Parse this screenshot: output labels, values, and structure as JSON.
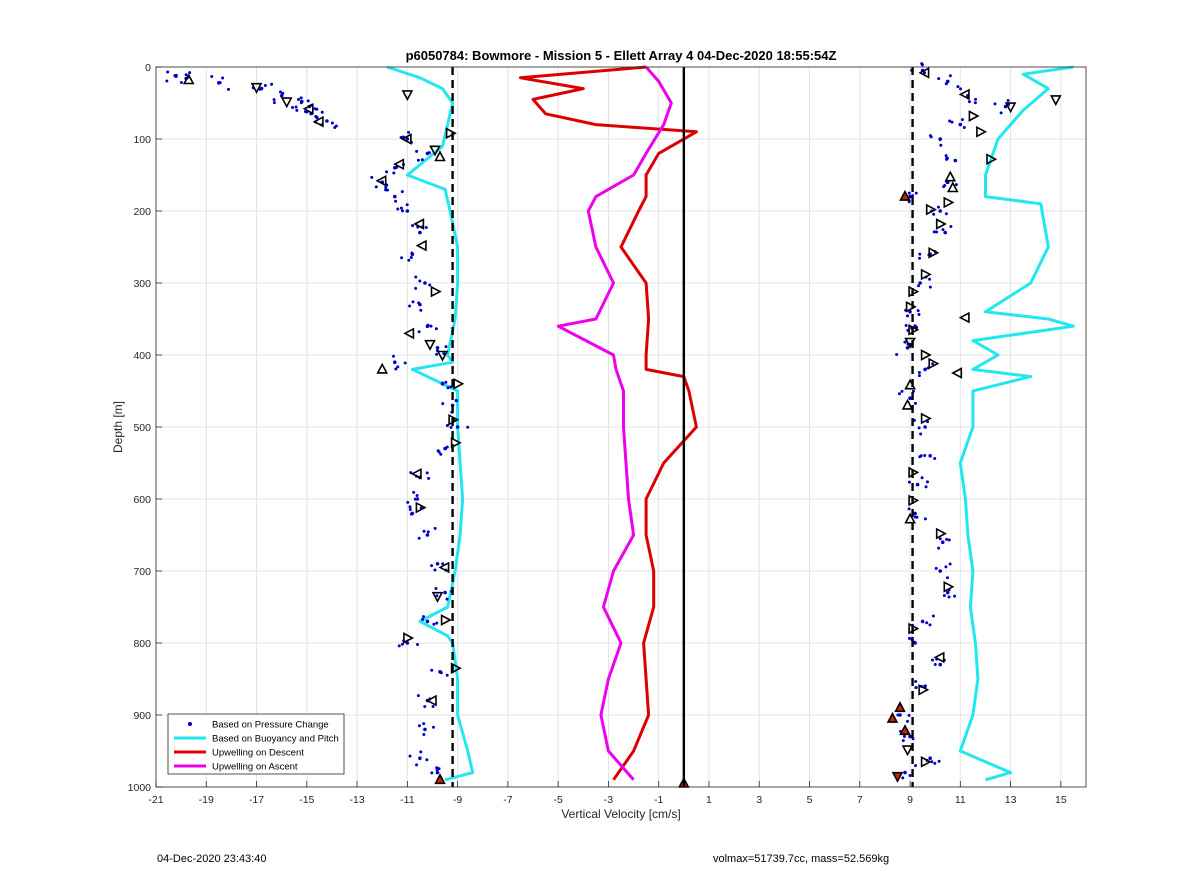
{
  "footer": {
    "timestamp": "04-Dec-2020 23:43:40",
    "vol_mass": "volmax=51739.7cc, mass=52.569kg"
  },
  "chart_data": {
    "type": "line",
    "title": "p6050784: Bowmore - Mission 5 - Ellett Array 4 04-Dec-2020 18:55:54Z",
    "xlabel": "Vertical Velocity [cm/s]",
    "ylabel": "Depth [m]",
    "xlim": [
      -21,
      16
    ],
    "ylim": [
      0,
      1000
    ],
    "y_reversed": true,
    "xticks": [
      -21,
      -19,
      -17,
      -15,
      -13,
      -11,
      -9,
      -7,
      -5,
      -3,
      -1,
      1,
      3,
      5,
      7,
      9,
      11,
      13,
      15
    ],
    "yticks": [
      0,
      100,
      200,
      300,
      400,
      500,
      600,
      700,
      800,
      900,
      1000
    ],
    "grid": true,
    "legend_position": "bottom-left",
    "colors": {
      "pressure": "#0000cc",
      "buoyancy": "#22e8ee",
      "descent": "#dd0000",
      "ascent": "#ee00ee",
      "reference": "#000000"
    },
    "legend": [
      {
        "label": "Based on Pressure Change",
        "style": "dot",
        "color": "#0000cc"
      },
      {
        "label": "Based on Buoyancy and Pitch",
        "style": "line",
        "color": "#22e8ee"
      },
      {
        "label": "Upwelling on Descent",
        "style": "line",
        "color": "#dd0000"
      },
      {
        "label": "Upwelling on Ascent",
        "style": "line",
        "color": "#ee00ee"
      }
    ],
    "reference_lines": [
      {
        "x": -9.2,
        "style": "dashed"
      },
      {
        "x": 9.1,
        "style": "dashed"
      },
      {
        "x": 0,
        "style": "solid"
      }
    ],
    "series": [
      {
        "name": "Based on Buoyancy and Pitch",
        "style": "line",
        "color": "#22e8ee",
        "depth": [
          0,
          15,
          30,
          50,
          80,
          110,
          150,
          170,
          200,
          250,
          300,
          350,
          400,
          410,
          420,
          450,
          500,
          550,
          600,
          650,
          700,
          750,
          770,
          790,
          800,
          850,
          900,
          950,
          980,
          990
        ],
        "values": [
          -11.8,
          -10.5,
          -9.6,
          -9.2,
          -9.4,
          -9.6,
          -11.0,
          -9.5,
          -9.3,
          -9.0,
          -9.0,
          -9.1,
          -9.4,
          -9.2,
          -10.8,
          -9.0,
          -9.0,
          -8.9,
          -8.8,
          -8.9,
          -9.1,
          -9.4,
          -10.5,
          -9.4,
          -9.2,
          -9.0,
          -9.0,
          -8.6,
          -8.4,
          -9.5
        ]
      },
      {
        "name": "Based on Buoyancy and Pitch",
        "style": "line",
        "color": "#22e8ee",
        "depth": [
          0,
          10,
          30,
          60,
          100,
          150,
          180,
          190,
          250,
          300,
          340,
          350,
          360,
          380,
          400,
          420,
          430,
          450,
          500,
          550,
          600,
          650,
          700,
          750,
          800,
          850,
          900,
          950,
          980,
          990
        ],
        "values": [
          15.5,
          13.5,
          14.5,
          13.5,
          12.5,
          12.0,
          12.0,
          14.2,
          14.5,
          13.8,
          12.0,
          14.5,
          15.5,
          11.5,
          12.5,
          11.5,
          13.8,
          11.5,
          11.5,
          11.0,
          11.2,
          11.3,
          11.5,
          11.4,
          11.6,
          11.7,
          11.5,
          11.0,
          13.0,
          12.0
        ]
      },
      {
        "name": "Upwelling on Descent",
        "style": "line",
        "color": "#dd0000",
        "depth": [
          0,
          15,
          30,
          45,
          65,
          80,
          90,
          120,
          150,
          180,
          200,
          250,
          300,
          350,
          400,
          420,
          430,
          450,
          500,
          550,
          600,
          650,
          700,
          750,
          800,
          850,
          900,
          950,
          990
        ],
        "values": [
          -1.5,
          -6.5,
          -4.0,
          -6.0,
          -5.5,
          -3.5,
          0.5,
          -1.0,
          -1.5,
          -1.5,
          -1.8,
          -2.5,
          -1.5,
          -1.4,
          -1.5,
          -1.5,
          0.0,
          0.2,
          0.5,
          -0.8,
          -1.5,
          -1.5,
          -1.2,
          -1.2,
          -1.6,
          -1.5,
          -1.4,
          -2.0,
          -2.8
        ]
      },
      {
        "name": "Upwelling on Ascent",
        "style": "line",
        "color": "#ee00ee",
        "depth": [
          0,
          20,
          50,
          80,
          120,
          150,
          180,
          200,
          250,
          300,
          350,
          360,
          400,
          420,
          450,
          500,
          550,
          600,
          650,
          700,
          750,
          800,
          850,
          900,
          950,
          990
        ],
        "values": [
          -1.5,
          -1.0,
          -0.5,
          -0.8,
          -1.5,
          -2.0,
          -3.5,
          -3.8,
          -3.5,
          -2.8,
          -3.5,
          -5.0,
          -2.8,
          -2.7,
          -2.4,
          -2.4,
          -2.3,
          -2.2,
          -2.0,
          -2.8,
          -3.2,
          -2.5,
          -3.0,
          -3.3,
          -3.0,
          -2.0
        ]
      },
      {
        "name": "Based on Pressure Change",
        "style": "dots",
        "color": "#0000cc",
        "depth": [
          12,
          16,
          22,
          30,
          40,
          48,
          55,
          62,
          70,
          75,
          100,
          120,
          140,
          160,
          180,
          200,
          230,
          260,
          300,
          330,
          360,
          390,
          410,
          440,
          470,
          500,
          530,
          570,
          600,
          620,
          650,
          690,
          730,
          770,
          800,
          840,
          880,
          920,
          960,
          980
        ],
        "values": [
          -20.2,
          -19.8,
          -18.5,
          -16.8,
          -16.0,
          -15.2,
          -14.9,
          -15.0,
          -14.6,
          -14.2,
          -11.0,
          -10.2,
          -11.5,
          -12.0,
          -11.5,
          -11.0,
          -10.5,
          -10.8,
          -10.3,
          -10.5,
          -10.2,
          -9.8,
          -11.5,
          -9.6,
          -9.2,
          -9.0,
          -9.5,
          -10.5,
          -10.6,
          -10.8,
          -10.2,
          -9.8,
          -9.5,
          -10.2,
          -11.0,
          -9.7,
          -10.2,
          -10.3,
          -10.5,
          -9.8
        ]
      },
      {
        "name": "Based on Pressure Change",
        "style": "dots",
        "color": "#0000cc",
        "depth": [
          5,
          20,
          40,
          55,
          80,
          100,
          130,
          160,
          180,
          200,
          230,
          260,
          300,
          340,
          360,
          390,
          420,
          460,
          500,
          540,
          580,
          620,
          660,
          700,
          730,
          770,
          800,
          830,
          860,
          900,
          930,
          960,
          980
        ],
        "values": [
          9.5,
          10.5,
          11.3,
          12.8,
          11.0,
          10.2,
          10.8,
          10.5,
          9.0,
          10.2,
          10.4,
          9.8,
          9.4,
          9.0,
          9.2,
          8.9,
          9.6,
          9.0,
          9.6,
          9.8,
          9.3,
          9.2,
          10.3,
          10.2,
          10.5,
          9.5,
          9.2,
          10.2,
          9.6,
          8.6,
          9.0,
          9.8,
          8.8
        ]
      }
    ],
    "markers": [
      {
        "x": -19.7,
        "depth": 18,
        "shape": "triangle-up"
      },
      {
        "x": -17.0,
        "depth": 28,
        "shape": "triangle-down"
      },
      {
        "x": -15.8,
        "depth": 48,
        "shape": "triangle-down"
      },
      {
        "x": -14.9,
        "depth": 58,
        "shape": "triangle-left"
      },
      {
        "x": -14.5,
        "depth": 76,
        "shape": "triangle-left"
      },
      {
        "x": -11.0,
        "depth": 38,
        "shape": "triangle-down"
      },
      {
        "x": -11.0,
        "depth": 100,
        "shape": "triangle-left"
      },
      {
        "x": -9.3,
        "depth": 92,
        "shape": "triangle-right"
      },
      {
        "x": -9.9,
        "depth": 115,
        "shape": "triangle-down"
      },
      {
        "x": -9.7,
        "depth": 125,
        "shape": "triangle-up"
      },
      {
        "x": -11.3,
        "depth": 135,
        "shape": "triangle-left"
      },
      {
        "x": -12.0,
        "depth": 158,
        "shape": "triangle-left"
      },
      {
        "x": -10.5,
        "depth": 218,
        "shape": "triangle-left"
      },
      {
        "x": -10.4,
        "depth": 248,
        "shape": "triangle-left"
      },
      {
        "x": -9.9,
        "depth": 312,
        "shape": "triangle-right"
      },
      {
        "x": -10.9,
        "depth": 370,
        "shape": "triangle-left"
      },
      {
        "x": -10.1,
        "depth": 385,
        "shape": "triangle-down"
      },
      {
        "x": -9.6,
        "depth": 400,
        "shape": "triangle-down"
      },
      {
        "x": -12.0,
        "depth": 420,
        "shape": "triangle-up"
      },
      {
        "x": -9.0,
        "depth": 440,
        "shape": "triangle-right"
      },
      {
        "x": -9.2,
        "depth": 490,
        "shape": "triangle-right"
      },
      {
        "x": -9.1,
        "depth": 522,
        "shape": "triangle-right"
      },
      {
        "x": -10.6,
        "depth": 565,
        "shape": "triangle-left"
      },
      {
        "x": -10.5,
        "depth": 612,
        "shape": "triangle-right"
      },
      {
        "x": -9.5,
        "depth": 695,
        "shape": "triangle-left"
      },
      {
        "x": -9.8,
        "depth": 735,
        "shape": "triangle-down"
      },
      {
        "x": -9.5,
        "depth": 768,
        "shape": "triangle-right"
      },
      {
        "x": -11.0,
        "depth": 793,
        "shape": "triangle-right"
      },
      {
        "x": -9.1,
        "depth": 835,
        "shape": "triangle-right"
      },
      {
        "x": -10.0,
        "depth": 880,
        "shape": "triangle-left"
      },
      {
        "x": -9.7,
        "depth": 990,
        "shape": "triangle-up-filled"
      },
      {
        "x": 9.6,
        "depth": 8,
        "shape": "triangle-left"
      },
      {
        "x": 11.2,
        "depth": 38,
        "shape": "triangle-left"
      },
      {
        "x": 13.0,
        "depth": 55,
        "shape": "triangle-down"
      },
      {
        "x": 14.8,
        "depth": 45,
        "shape": "triangle-down"
      },
      {
        "x": 11.5,
        "depth": 68,
        "shape": "triangle-right"
      },
      {
        "x": 12.2,
        "depth": 128,
        "shape": "triangle-right"
      },
      {
        "x": 11.8,
        "depth": 90,
        "shape": "triangle-right"
      },
      {
        "x": 10.6,
        "depth": 153,
        "shape": "triangle-up"
      },
      {
        "x": 10.7,
        "depth": 168,
        "shape": "triangle-up"
      },
      {
        "x": 8.8,
        "depth": 180,
        "shape": "triangle-up-filled"
      },
      {
        "x": 10.5,
        "depth": 188,
        "shape": "triangle-right"
      },
      {
        "x": 9.8,
        "depth": 198,
        "shape": "triangle-right"
      },
      {
        "x": 10.2,
        "depth": 218,
        "shape": "triangle-right"
      },
      {
        "x": 9.9,
        "depth": 258,
        "shape": "triangle-right"
      },
      {
        "x": 9.6,
        "depth": 288,
        "shape": "triangle-right"
      },
      {
        "x": 9.1,
        "depth": 312,
        "shape": "triangle-right"
      },
      {
        "x": 9.0,
        "depth": 333,
        "shape": "triangle-right"
      },
      {
        "x": 11.2,
        "depth": 348,
        "shape": "triangle-left"
      },
      {
        "x": 9.1,
        "depth": 365,
        "shape": "triangle-right"
      },
      {
        "x": 9.0,
        "depth": 382,
        "shape": "triangle-down"
      },
      {
        "x": 9.6,
        "depth": 400,
        "shape": "triangle-right"
      },
      {
        "x": 9.9,
        "depth": 412,
        "shape": "triangle-right"
      },
      {
        "x": 10.9,
        "depth": 425,
        "shape": "triangle-left"
      },
      {
        "x": 9.0,
        "depth": 442,
        "shape": "triangle-up"
      },
      {
        "x": 8.9,
        "depth": 470,
        "shape": "triangle-up"
      },
      {
        "x": 9.6,
        "depth": 488,
        "shape": "triangle-right"
      },
      {
        "x": 9.1,
        "depth": 563,
        "shape": "triangle-right"
      },
      {
        "x": 9.1,
        "depth": 602,
        "shape": "triangle-right"
      },
      {
        "x": 9.0,
        "depth": 628,
        "shape": "triangle-up"
      },
      {
        "x": 10.2,
        "depth": 648,
        "shape": "triangle-right"
      },
      {
        "x": 10.5,
        "depth": 722,
        "shape": "triangle-right"
      },
      {
        "x": 9.1,
        "depth": 780,
        "shape": "triangle-right"
      },
      {
        "x": 10.2,
        "depth": 820,
        "shape": "triangle-left"
      },
      {
        "x": 9.5,
        "depth": 865,
        "shape": "triangle-right"
      },
      {
        "x": 8.6,
        "depth": 890,
        "shape": "triangle-up-filled"
      },
      {
        "x": 8.3,
        "depth": 905,
        "shape": "triangle-up-filled"
      },
      {
        "x": 8.8,
        "depth": 922,
        "shape": "triangle-up-filled"
      },
      {
        "x": 8.9,
        "depth": 948,
        "shape": "triangle-down"
      },
      {
        "x": 9.6,
        "depth": 965,
        "shape": "triangle-right"
      },
      {
        "x": 8.5,
        "depth": 985,
        "shape": "triangle-down-filled"
      },
      {
        "x": 0.0,
        "depth": 995,
        "shape": "triangle-up-filled"
      }
    ]
  }
}
